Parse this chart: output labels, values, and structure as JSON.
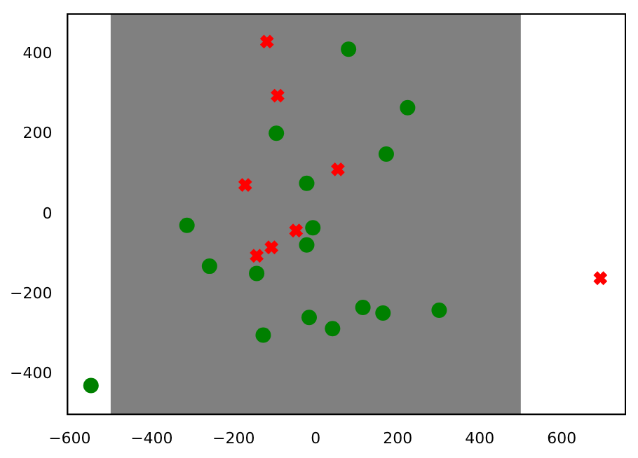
{
  "chart_data": {
    "type": "scatter",
    "xlim": [
      -605,
      755
    ],
    "ylim": [
      -500,
      500
    ],
    "xticks": [
      -600,
      -400,
      -200,
      0,
      200,
      400,
      600
    ],
    "yticks": [
      -400,
      -200,
      0,
      200,
      400
    ],
    "grid": false,
    "legend": false,
    "bands": [
      {
        "axis": "x",
        "from": -500,
        "to": 500,
        "color": "#808080"
      }
    ],
    "series": [
      {
        "color": "#008000",
        "marker": "circle",
        "x": [
          80,
          224,
          -96,
          172,
          -22,
          -314,
          -7,
          -22,
          -259,
          -144,
          -16,
          41,
          115,
          164,
          301,
          -128,
          -548
        ],
        "values": [
          412,
          266,
          202,
          150,
          77,
          -28,
          -34,
          -77,
          -130,
          -148,
          -258,
          -286,
          -233,
          -247,
          -240,
          -302,
          -428
        ]
      },
      {
        "color": "#ff0000",
        "marker": "cross",
        "x": [
          -119,
          -93,
          54,
          -172,
          -48,
          -108,
          -144,
          694
        ],
        "values": [
          431,
          296,
          112,
          73,
          -41,
          -83,
          -104,
          -160
        ]
      }
    ]
  }
}
